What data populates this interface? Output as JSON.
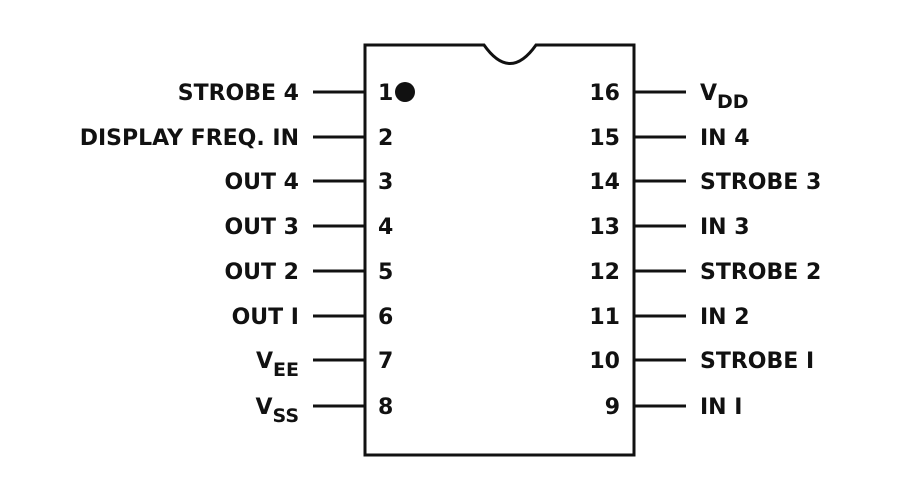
{
  "chip": {
    "pin1_marker": "filled-dot",
    "left_pins": [
      {
        "num": "1",
        "label": "STROBE 4",
        "sub": ""
      },
      {
        "num": "2",
        "label": "DISPLAY FREQ. IN",
        "sub": ""
      },
      {
        "num": "3",
        "label": "OUT 4",
        "sub": ""
      },
      {
        "num": "4",
        "label": "OUT 3",
        "sub": ""
      },
      {
        "num": "5",
        "label": "OUT 2",
        "sub": ""
      },
      {
        "num": "6",
        "label": "OUT I",
        "sub": ""
      },
      {
        "num": "7",
        "label": "V",
        "sub": "EE"
      },
      {
        "num": "8",
        "label": "V",
        "sub": "SS"
      }
    ],
    "right_pins": [
      {
        "num": "16",
        "label": "V",
        "sub": "DD"
      },
      {
        "num": "15",
        "label": "IN 4",
        "sub": ""
      },
      {
        "num": "14",
        "label": "STROBE 3",
        "sub": ""
      },
      {
        "num": "13",
        "label": "IN 3",
        "sub": ""
      },
      {
        "num": "12",
        "label": "STROBE 2",
        "sub": ""
      },
      {
        "num": "11",
        "label": "IN 2",
        "sub": ""
      },
      {
        "num": "10",
        "label": "STROBE I",
        "sub": ""
      },
      {
        "num": "9",
        "label": "IN I",
        "sub": ""
      }
    ]
  }
}
